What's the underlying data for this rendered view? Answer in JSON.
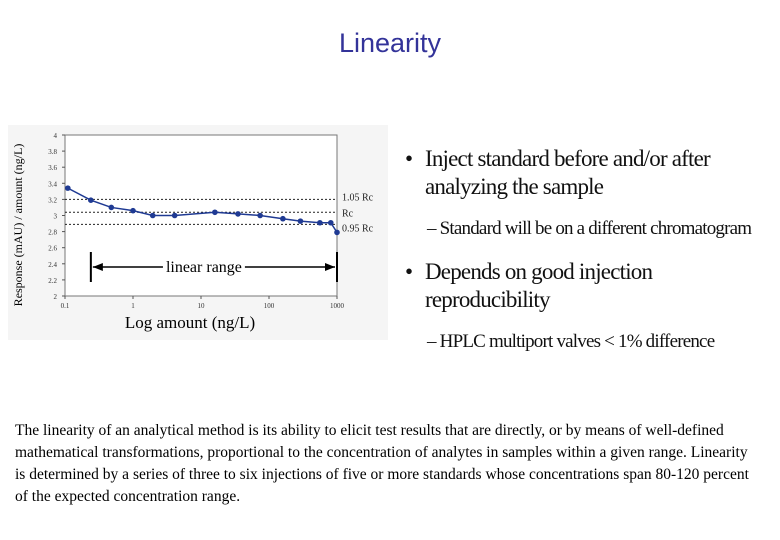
{
  "title": "Linearity",
  "chart_data": {
    "type": "line",
    "ylabel": "Response (mAU) / amount (ng/L)",
    "xlabel": "Log amount (ng/L)",
    "log_x": true,
    "xlim": [
      0.1,
      1000
    ],
    "xticks": [
      0.1,
      1,
      10,
      100,
      1000
    ],
    "ylim": [
      2,
      4
    ],
    "yticks": [
      2,
      2.2,
      2.4,
      2.6,
      2.8,
      3,
      3.2,
      3.4,
      3.6,
      3.8,
      4
    ],
    "x": [
      0.11,
      0.24,
      0.48,
      1,
      1.95,
      4.1,
      16,
      35,
      74,
      160,
      290,
      560,
      810,
      1000
    ],
    "series": [
      {
        "color": "#1f3a93",
        "values": [
          3.34,
          3.19,
          3.1,
          3.06,
          3.0,
          3.0,
          3.04,
          3.02,
          3.0,
          2.96,
          2.93,
          2.91,
          2.91,
          2.79
        ]
      }
    ],
    "reference_lines": [
      {
        "label": "1.05 Rc",
        "value": 3.2
      },
      {
        "label": "Rc",
        "value": 3.04
      },
      {
        "label": "0.95 Rc",
        "value": 2.89
      }
    ],
    "linear_range": {
      "label": "linear range",
      "from": 0.24,
      "to": 1000
    }
  },
  "bullets": [
    {
      "text": "Inject standard before and/or after analyzing the sample",
      "sub": "Standard will be on a different chromatogram"
    },
    {
      "text": "Depends on good injection reproducibility",
      "sub": "HPLC multiport valves < 1% difference"
    }
  ],
  "paragraph": "The linearity of an analytical method is its ability to elicit test results that are directly, or by means of well-defined mathematical transformations, proportional to the concentration of analytes in samples within a given range. Linearity is determined by a series of three to six injections of five or more standards whose concentrations span 80-120 percent of the expected concentration range."
}
